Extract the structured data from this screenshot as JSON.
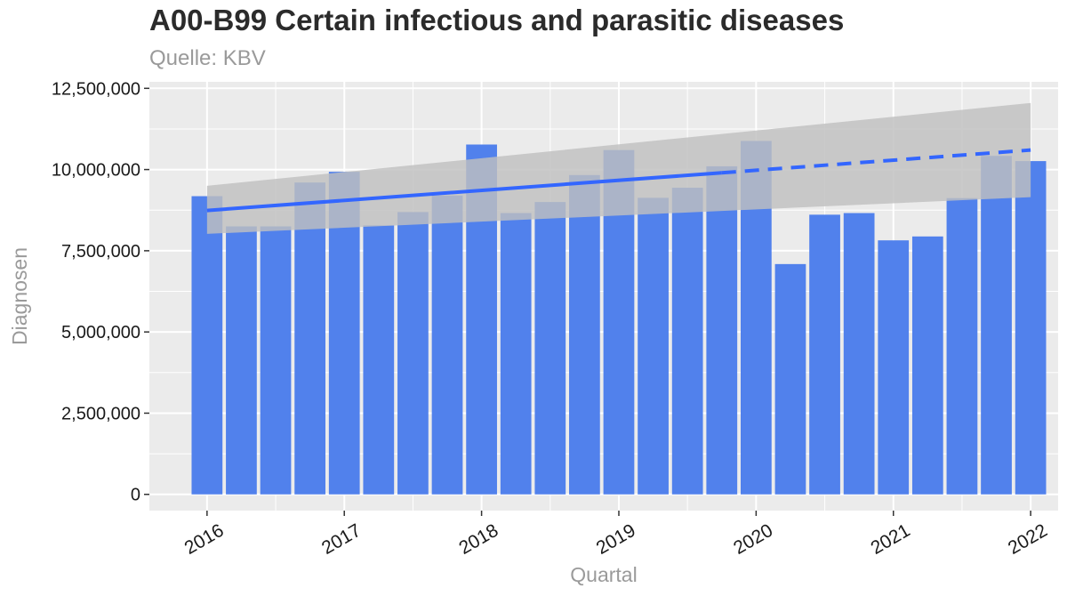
{
  "chart_data": {
    "type": "bar",
    "title": "A00-B99 Certain infectious and parasitic diseases",
    "subtitle": "Quelle: KBV",
    "xlabel": "Quartal",
    "ylabel": "Diagnosen",
    "x_tick_labels": [
      "2016",
      "2017",
      "2018",
      "2019",
      "2020",
      "2021",
      "2022"
    ],
    "x_ticks": [
      2016,
      2017,
      2018,
      2019,
      2020,
      2021,
      2022
    ],
    "xlim": [
      2015.58,
      2022.2
    ],
    "y_tick_labels": [
      "0",
      "2,500,000",
      "5,000,000",
      "7,500,000",
      "10,000,000",
      "12,500,000"
    ],
    "y_ticks": [
      0,
      2500000,
      5000000,
      7500000,
      10000000,
      12500000
    ],
    "ylim": [
      -500000,
      12700000
    ],
    "bar_x": [
      2016.0,
      2016.25,
      2016.5,
      2016.75,
      2017.0,
      2017.25,
      2017.5,
      2017.75,
      2018.0,
      2018.25,
      2018.5,
      2018.75,
      2019.0,
      2019.25,
      2019.5,
      2019.75,
      2020.0,
      2020.25,
      2020.5,
      2020.75,
      2021.0,
      2021.25,
      2021.5,
      2021.75,
      2022.0
    ],
    "values": [
      9180000,
      8250000,
      8250000,
      9600000,
      9930000,
      8280000,
      8690000,
      9200000,
      10770000,
      8660000,
      9000000,
      9830000,
      10600000,
      9130000,
      9440000,
      10100000,
      10880000,
      7090000,
      8610000,
      8660000,
      7820000,
      7940000,
      9120000,
      10420000,
      10260000
    ],
    "trend_line": {
      "x": [
        2016.0,
        2019.75,
        2022.0
      ],
      "y": [
        8740000,
        9900000,
        10600000
      ],
      "solid_until": 2019.75,
      "confidence_band": {
        "x": [
          2016.0,
          2022.0
        ],
        "upper": [
          9500000,
          12050000
        ],
        "lower": [
          8020000,
          9150000
        ]
      }
    },
    "grid": true,
    "colors": {
      "bar": "#5181ec",
      "trend": "#3366ff",
      "band": "#c0c0c0",
      "panel": "#ebebeb",
      "grid": "#ffffff"
    }
  }
}
